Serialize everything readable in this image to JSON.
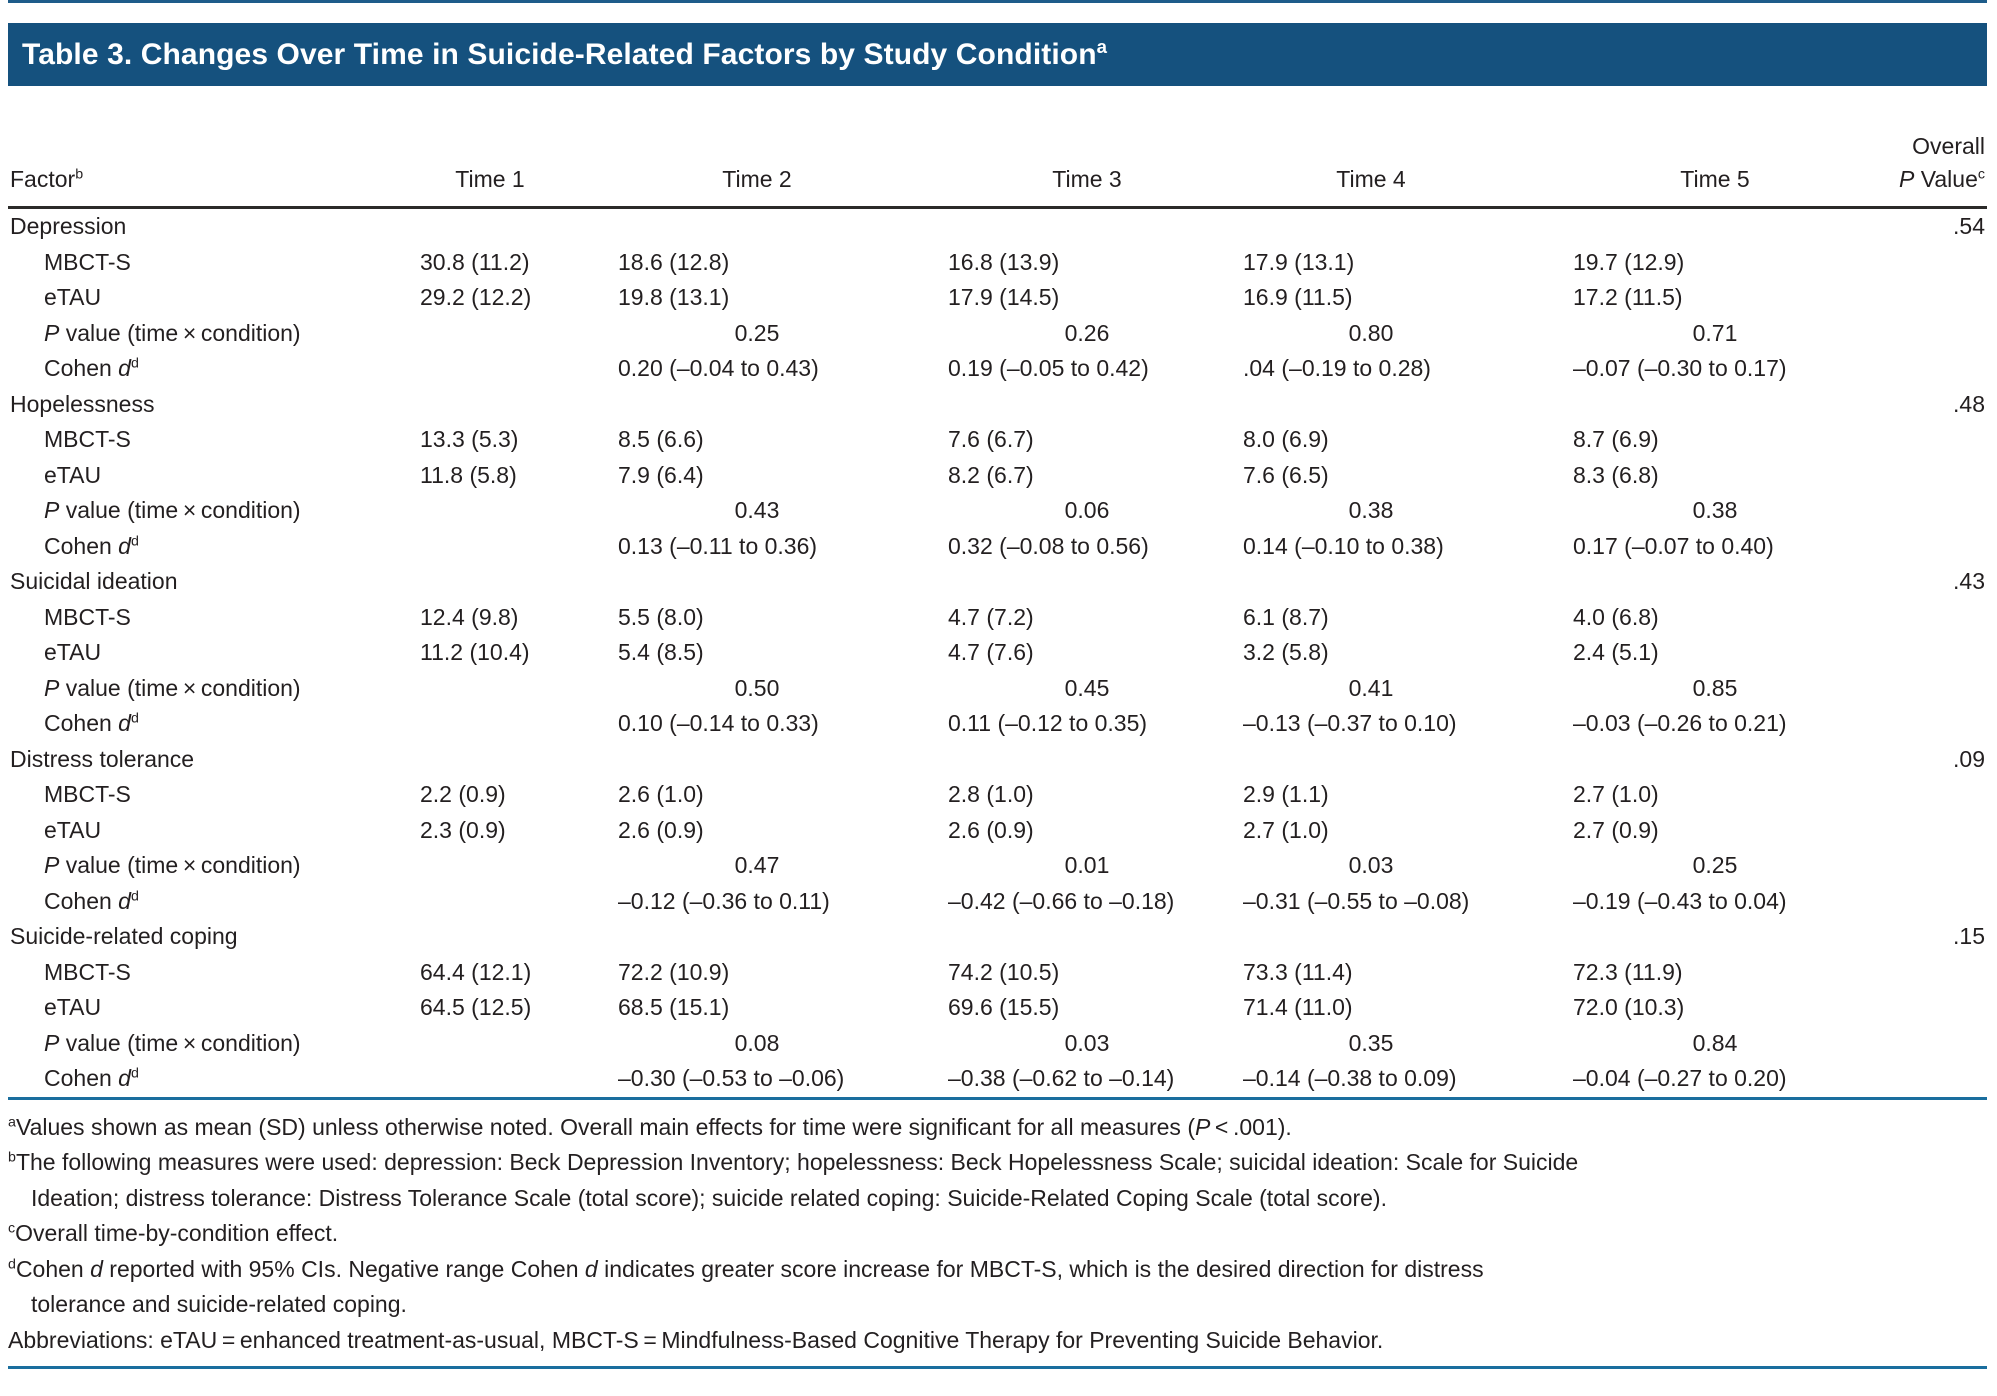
{
  "title": "Table 3. Changes Over Time in Suicide-Related Factors by Study Condition^a^",
  "colors": {
    "title_bar": "#15517E",
    "teal_rule": "#1A6E9E",
    "header_rule": "#2B2A29",
    "text": "#231F20"
  },
  "table": {
    "columns": [
      "Factor^b^",
      "Time 1",
      "Time 2",
      "Time 3",
      "Time 4",
      "Time 5",
      "Overall\n*P* Value^c^"
    ],
    "groups": [
      {
        "factor": "Depression",
        "overall_p": ".54",
        "rows": [
          {
            "label": "MBCT-S",
            "values": [
              "30.8 (11.2)",
              "18.6 (12.8)",
              "16.8 (13.9)",
              "17.9 (13.1)",
              "19.7 (12.9)"
            ]
          },
          {
            "label": "eTAU",
            "values": [
              "29.2 (12.2)",
              "19.8 (13.1)",
              "17.9 (14.5)",
              "16.9 (11.5)",
              "17.2 (11.5)"
            ]
          },
          {
            "label": "*P* value (time × condition)",
            "values": [
              "",
              "0.25",
              "0.26",
              "0.80",
              "0.71"
            ]
          },
          {
            "label": "Cohen *d*^d^",
            "values": [
              "",
              "0.20 (–0.04 to 0.43)",
              "0.19 (–0.05 to 0.42)",
              ".04 (–0.19 to 0.28)",
              "–0.07 (–0.30 to 0.17)"
            ]
          }
        ]
      },
      {
        "factor": "Hopelessness",
        "overall_p": ".48",
        "rows": [
          {
            "label": "MBCT-S",
            "values": [
              "13.3 (5.3)",
              "8.5 (6.6)",
              "7.6 (6.7)",
              "8.0 (6.9)",
              "8.7 (6.9)"
            ]
          },
          {
            "label": "eTAU",
            "values": [
              "11.8 (5.8)",
              "7.9 (6.4)",
              "8.2 (6.7)",
              "7.6 (6.5)",
              "8.3 (6.8)"
            ]
          },
          {
            "label": "*P* value (time × condition)",
            "values": [
              "",
              "0.43",
              "0.06",
              "0.38",
              "0.38"
            ]
          },
          {
            "label": "Cohen *d*^d^",
            "values": [
              "",
              "0.13 (–0.11 to 0.36)",
              "0.32 (–0.08 to 0.56)",
              "0.14 (–0.10 to 0.38)",
              "0.17 (–0.07 to 0.40)"
            ]
          }
        ]
      },
      {
        "factor": "Suicidal ideation",
        "overall_p": ".43",
        "rows": [
          {
            "label": "MBCT-S",
            "values": [
              "12.4 (9.8)",
              "5.5 (8.0)",
              "4.7 (7.2)",
              "6.1 (8.7)",
              "4.0 (6.8)"
            ]
          },
          {
            "label": "eTAU",
            "values": [
              "11.2 (10.4)",
              "5.4 (8.5)",
              "4.7 (7.6)",
              "3.2 (5.8)",
              "2.4 (5.1)"
            ]
          },
          {
            "label": "*P* value (time × condition)",
            "values": [
              "",
              "0.50",
              "0.45",
              "0.41",
              "0.85"
            ]
          },
          {
            "label": "Cohen *d*^d^",
            "values": [
              "",
              "0.10 (–0.14 to 0.33)",
              "0.11 (–0.12 to 0.35)",
              "–0.13 (–0.37 to 0.10)",
              "–0.03 (–0.26 to 0.21)"
            ]
          }
        ]
      },
      {
        "factor": "Distress tolerance",
        "overall_p": ".09",
        "rows": [
          {
            "label": "MBCT-S",
            "values": [
              "2.2 (0.9)",
              "2.6 (1.0)",
              "2.8 (1.0)",
              "2.9 (1.1)",
              "2.7 (1.0)"
            ]
          },
          {
            "label": "eTAU",
            "values": [
              "2.3 (0.9)",
              "2.6 (0.9)",
              "2.6 (0.9)",
              "2.7 (1.0)",
              "2.7 (0.9)"
            ]
          },
          {
            "label": "*P* value (time × condition)",
            "values": [
              "",
              "0.47",
              "0.01",
              "0.03",
              "0.25"
            ]
          },
          {
            "label": "Cohen *d*^d^",
            "values": [
              "",
              "–0.12 (–0.36 to 0.11)",
              "–0.42 (–0.66 to –0.18)",
              "–0.31 (–0.55 to –0.08)",
              "–0.19 (–0.43 to 0.04)"
            ]
          }
        ]
      },
      {
        "factor": "Suicide-related coping",
        "overall_p": ".15",
        "rows": [
          {
            "label": "MBCT-S",
            "values": [
              "64.4 (12.1)",
              "72.2 (10.9)",
              "74.2 (10.5)",
              "73.3 (11.4)",
              "72.3 (11.9)"
            ]
          },
          {
            "label": "eTAU",
            "values": [
              "64.5 (12.5)",
              "68.5 (15.1)",
              "69.6 (15.5)",
              "71.4 (11.0)",
              "72.0 (10.3)"
            ]
          },
          {
            "label": "*P* value (time × condition)",
            "values": [
              "",
              "0.08",
              "0.03",
              "0.35",
              "0.84"
            ]
          },
          {
            "label": "Cohen *d*^d^",
            "values": [
              "",
              "–0.30 (–0.53 to –0.06)",
              "–0.38 (–0.62 to –0.14)",
              "–0.14 (–0.38 to 0.09)",
              "–0.04 (–0.27 to 0.20)"
            ]
          }
        ]
      }
    ]
  },
  "footnotes": [
    "^a^Values shown as mean (SD) unless otherwise noted. Overall main effects for time were significant for all measures (*P* < .001).",
    "^b^The following measures were used: depression: Beck Depression Inventory; hopelessness: Beck Hopelessness Scale; suicidal ideation: Scale for Suicide\nIdeation; distress tolerance: Distress Tolerance Scale (total score); suicide related coping: Suicide-Related Coping Scale (total score).",
    "^c^Overall time-by-condition effect.",
    "^d^Cohen *d* reported with 95% CIs. Negative range Cohen *d* indicates greater score increase for MBCT-S, which is the desired direction for distress\ntolerance and suicide-related coping.",
    "Abbreviations: eTAU = enhanced treatment-as-usual, MBCT-S = Mindfulness-Based Cognitive Therapy for Preventing Suicide Behavior."
  ]
}
